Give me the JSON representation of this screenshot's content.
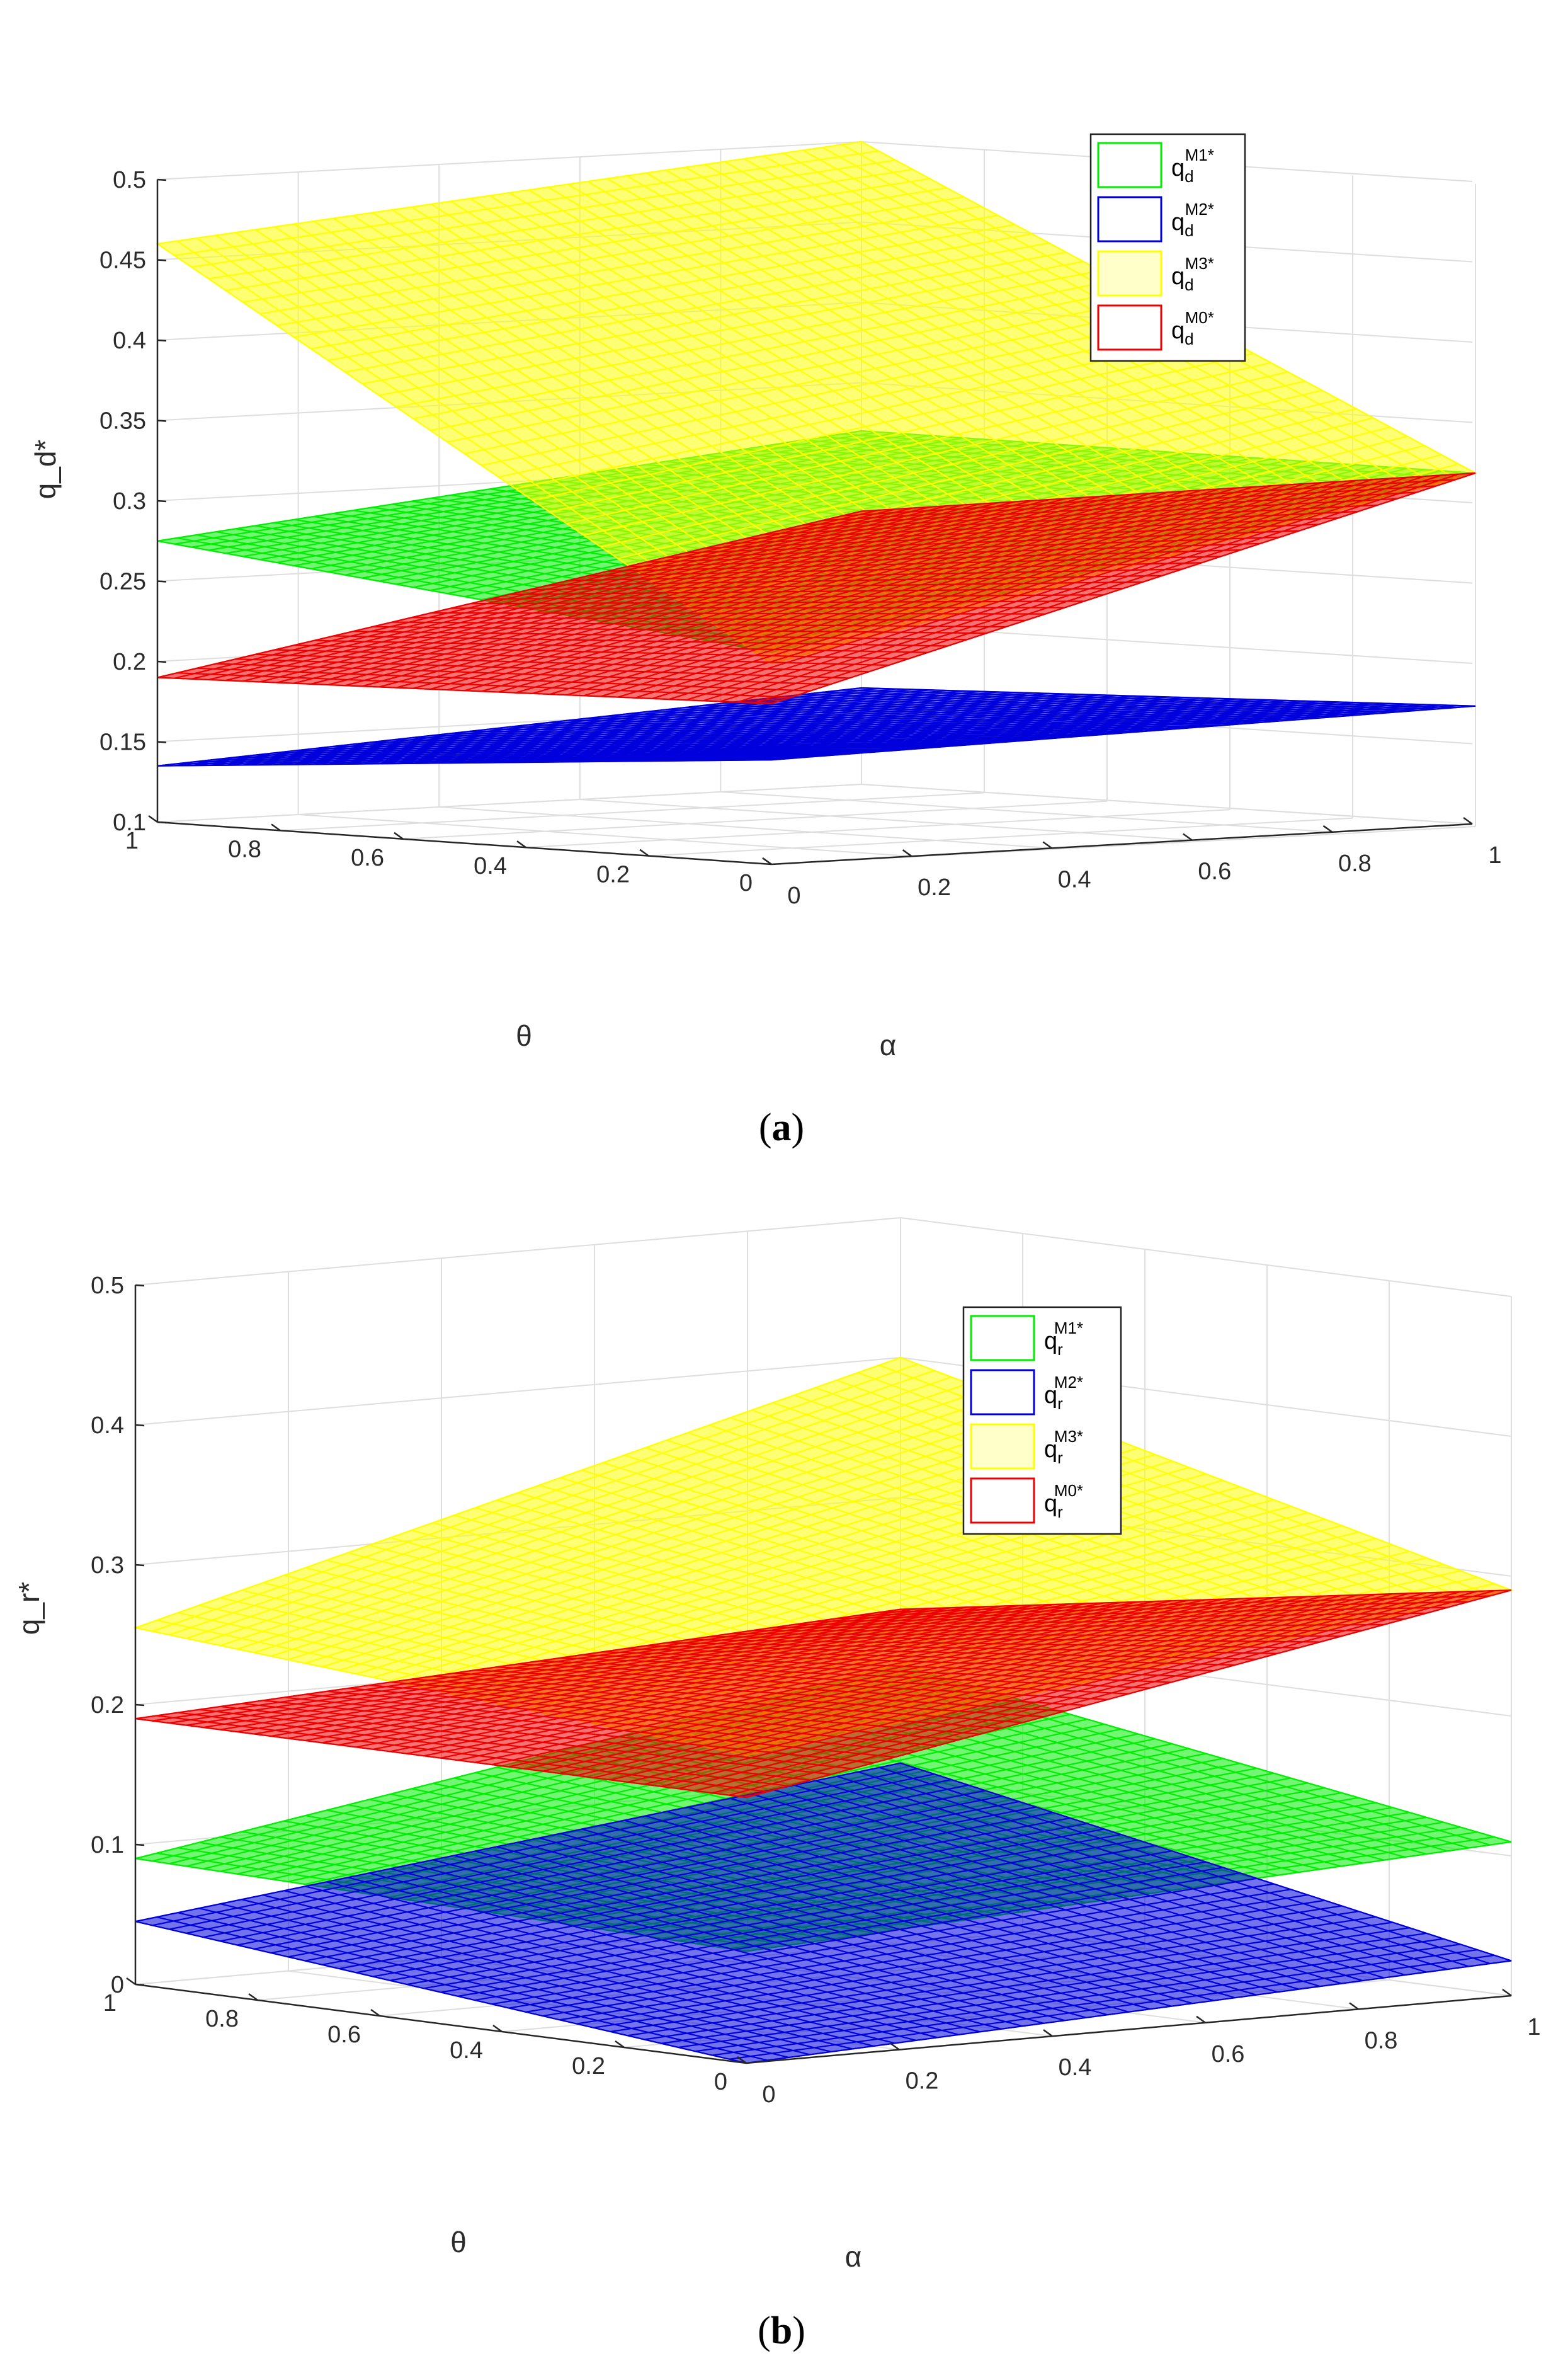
{
  "chart_data": [
    {
      "type": "surface",
      "panel_label": "a",
      "zlabel": "q_d*",
      "xlabel": "α",
      "ylabel": "θ",
      "zlim": [
        0.1,
        0.5
      ],
      "xlim": [
        0,
        1
      ],
      "ylim": [
        0,
        1
      ],
      "zticks": [
        "0.1",
        "0.15",
        "0.2",
        "0.25",
        "0.3",
        "0.35",
        "0.4",
        "0.45",
        "0.5"
      ],
      "xticks": [
        "0",
        "0.2",
        "0.4",
        "0.6",
        "0.8",
        "1"
      ],
      "yticks": [
        "0",
        "0.2",
        "0.4",
        "0.6",
        "0.8",
        "1"
      ],
      "legend_position": "top-right",
      "series": [
        {
          "name": "q_d^M1*",
          "base": "q",
          "sub": "d",
          "sup": "M1*",
          "color": "#00ee00",
          "corner_values": {
            "a0_t0": 0.232,
            "a1_t0": 0.32,
            "a0_t1": 0.275,
            "a1_t1": 0.32
          }
        },
        {
          "name": "q_d^M2*",
          "base": "q",
          "sub": "d",
          "sup": "M2*",
          "color": "#0000dd",
          "corner_values": {
            "a0_t0": 0.165,
            "a1_t0": 0.175,
            "a0_t1": 0.135,
            "a1_t1": 0.16
          }
        },
        {
          "name": "q_d^M3*",
          "base": "q",
          "sub": "d",
          "sup": "M3*",
          "color": "#ffff00",
          "corner_values": {
            "a0_t0": 0.225,
            "a1_t0": 0.32,
            "a0_t1": 0.46,
            "a1_t1": 0.5
          }
        },
        {
          "name": "q_d^M0*",
          "base": "q",
          "sub": "d",
          "sup": "M0*",
          "color": "#ee0000",
          "corner_values": {
            "a0_t0": 0.2,
            "a1_t0": 0.32,
            "a0_t1": 0.19,
            "a1_t1": 0.27
          }
        }
      ]
    },
    {
      "type": "surface",
      "panel_label": "b",
      "zlabel": "q_r*",
      "xlabel": "α",
      "ylabel": "θ",
      "zlim": [
        0,
        0.5
      ],
      "xlim": [
        0,
        1
      ],
      "ylim": [
        0,
        1
      ],
      "zticks": [
        "0",
        "0.1",
        "0.2",
        "0.3",
        "0.4",
        "0.5"
      ],
      "xticks": [
        "0",
        "0.2",
        "0.4",
        "0.6",
        "0.8",
        "1"
      ],
      "yticks": [
        "0",
        "0.2",
        "0.4",
        "0.6",
        "0.8",
        "1"
      ],
      "legend_position": "top-right",
      "series": [
        {
          "name": "q_r^M1*",
          "base": "q",
          "sub": "r",
          "sup": "M1*",
          "color": "#00ee00",
          "corner_values": {
            "a0_t0": 0.08,
            "a1_t0": 0.11,
            "a0_t1": 0.09,
            "a1_t1": 0.18
          }
        },
        {
          "name": "q_r^M2*",
          "base": "q",
          "sub": "r",
          "sup": "M2*",
          "color": "#0000dd",
          "corner_values": {
            "a0_t0": 0.0,
            "a1_t0": 0.025,
            "a0_t1": 0.045,
            "a1_t1": 0.11
          }
        },
        {
          "name": "q_r^M3*",
          "base": "q",
          "sub": "r",
          "sup": "M3*",
          "color": "#ffff00",
          "corner_values": {
            "a0_t0": 0.22,
            "a1_t0": 0.29,
            "a0_t1": 0.255,
            "a1_t1": 0.4
          }
        },
        {
          "name": "q_r^M0*",
          "base": "q",
          "sub": "r",
          "sup": "M0*",
          "color": "#ee0000",
          "corner_values": {
            "a0_t0": 0.19,
            "a1_t0": 0.29,
            "a0_t1": 0.19,
            "a1_t1": 0.22
          }
        }
      ]
    }
  ]
}
